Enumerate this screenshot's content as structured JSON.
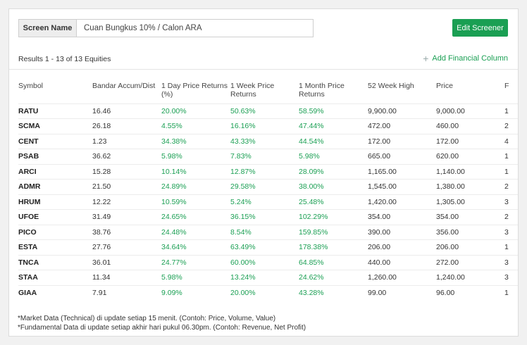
{
  "screen": {
    "label": "Screen Name",
    "value": "Cuan Bungkus 10% / Calon ARA",
    "edit_button": "Edit Screener"
  },
  "results_text": "Results 1 - 13 of 13 Equities",
  "add_column_label": "Add Financial Column",
  "colors": {
    "accent": "#1a9f53"
  },
  "table": {
    "headers": [
      "Symbol",
      "Bandar Accum/Dist",
      "1 Day Price Returns (%)",
      "1 Week Price Returns",
      "1 Month Price Returns",
      "52 Week High",
      "Price",
      "F"
    ],
    "rows": [
      [
        "RATU",
        "16.46",
        "20.00%",
        "50.63%",
        "58.59%",
        "9,900.00",
        "9,000.00",
        "1"
      ],
      [
        "SCMA",
        "26.18",
        "4.55%",
        "16.16%",
        "47.44%",
        "472.00",
        "460.00",
        "2"
      ],
      [
        "CENT",
        "1.23",
        "34.38%",
        "43.33%",
        "44.54%",
        "172.00",
        "172.00",
        "4"
      ],
      [
        "PSAB",
        "36.62",
        "5.98%",
        "7.83%",
        "5.98%",
        "665.00",
        "620.00",
        "1"
      ],
      [
        "ARCI",
        "15.28",
        "10.14%",
        "12.87%",
        "28.09%",
        "1,165.00",
        "1,140.00",
        "1"
      ],
      [
        "ADMR",
        "21.50",
        "24.89%",
        "29.58%",
        "38.00%",
        "1,545.00",
        "1,380.00",
        "2"
      ],
      [
        "HRUM",
        "12.22",
        "10.59%",
        "5.24%",
        "25.48%",
        "1,420.00",
        "1,305.00",
        "3"
      ],
      [
        "UFOE",
        "31.49",
        "24.65%",
        "36.15%",
        "102.29%",
        "354.00",
        "354.00",
        "2"
      ],
      [
        "PICO",
        "38.76",
        "24.48%",
        "8.54%",
        "159.85%",
        "390.00",
        "356.00",
        "3"
      ],
      [
        "ESTA",
        "27.76",
        "34.64%",
        "63.49%",
        "178.38%",
        "206.00",
        "206.00",
        "1"
      ],
      [
        "TNCA",
        "36.01",
        "24.77%",
        "60.00%",
        "64.85%",
        "440.00",
        "272.00",
        "3"
      ],
      [
        "STAA",
        "11.34",
        "5.98%",
        "13.24%",
        "24.62%",
        "1,260.00",
        "1,240.00",
        "3"
      ],
      [
        "GIAA",
        "7.91",
        "9.09%",
        "20.00%",
        "43.28%",
        "99.00",
        "96.00",
        "1"
      ]
    ]
  },
  "footer": {
    "line1": "*Market Data (Technical) di update setiap 15 menit. (Contoh: Price, Volume, Value)",
    "line2": "*Fundamental Data di update setiap akhir hari pukul 06.30pm. (Contoh: Revenue, Net Profit)"
  }
}
